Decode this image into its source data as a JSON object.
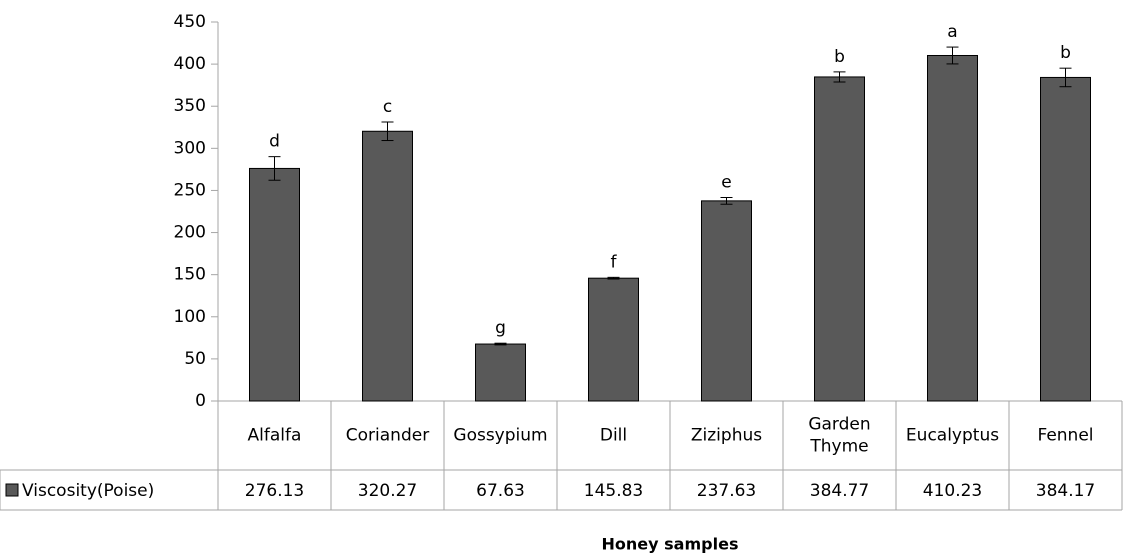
{
  "chart_data": {
    "type": "bar",
    "xlabel": "Honey samples",
    "categories": [
      "Alfalfa",
      "Coriander",
      "Gossypium",
      "Dill",
      "Ziziphus",
      "Garden Thyme",
      "Eucalyptus",
      "Fennel"
    ],
    "series": [
      {
        "name": "Viscosity(Poise)",
        "color": "#595959",
        "values": [
          276.13,
          320.27,
          67.63,
          145.83,
          237.63,
          384.77,
          410.23,
          384.17
        ],
        "errors": [
          14,
          11,
          1,
          1,
          4,
          6,
          10,
          11
        ]
      }
    ],
    "annotations": [
      "d",
      "c",
      "g",
      "f",
      "e",
      "b",
      "a",
      "b"
    ],
    "ylim": [
      0,
      450
    ],
    "yticks": [
      0,
      50,
      100,
      150,
      200,
      250,
      300,
      350,
      400,
      450
    ],
    "grid": false,
    "data_table": true
  }
}
